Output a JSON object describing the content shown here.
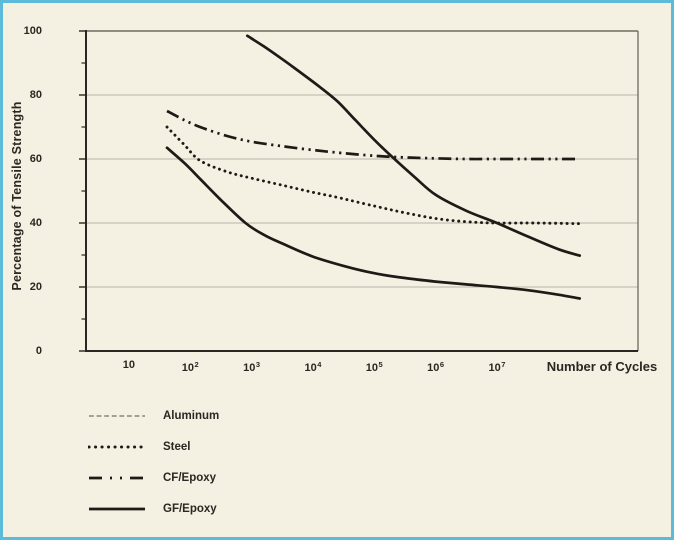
{
  "figure": {
    "background_color": "#f4f0e2",
    "border_color": "#5bbbd9",
    "gridline_color": "#b9b5aa",
    "axis_color": "#2a2620",
    "frame_color": "#6e6a60",
    "text_color": "#2b2722"
  },
  "chart_data": {
    "type": "line",
    "title": "",
    "xlabel": "Number of Cycles",
    "ylabel": "Percentage of Tensile Strength",
    "x_scale": "log10",
    "xlim_log10": [
      0.3,
      9.3
    ],
    "ylim": [
      0,
      100
    ],
    "grid": "horizontal-only",
    "legend_position": "below-left",
    "x_ticks": [
      {
        "log10": 1,
        "base": "10",
        "exp": ""
      },
      {
        "log10": 2,
        "base": "10",
        "exp": "2"
      },
      {
        "log10": 3,
        "base": "10",
        "exp": "3"
      },
      {
        "log10": 4,
        "base": "10",
        "exp": "4"
      },
      {
        "log10": 5,
        "base": "10",
        "exp": "5"
      },
      {
        "log10": 6,
        "base": "10",
        "exp": "6"
      },
      {
        "log10": 7,
        "base": "10",
        "exp": "7"
      }
    ],
    "y_ticks": [
      0,
      20,
      40,
      60,
      80,
      100
    ],
    "y_minor_ticks": [
      10,
      30,
      50,
      70,
      90
    ],
    "gridline_values": [
      20,
      40,
      60,
      80
    ],
    "series": [
      {
        "name": "Aluminum",
        "legend_line": {
          "color": "#8a857a",
          "width": 1.6,
          "dash": "4.8 2.8",
          "cap": "butt"
        },
        "curve_line": {
          "color": "#1e1b16",
          "width": 2.7,
          "dash": "",
          "cap": "round"
        },
        "points_log10_pct": [
          [
            2.93,
            98.5
          ],
          [
            3.2,
            95.2
          ],
          [
            3.5,
            91.2
          ],
          [
            3.8,
            87.0
          ],
          [
            4.1,
            82.7
          ],
          [
            4.4,
            78.0
          ],
          [
            4.7,
            72.0
          ],
          [
            5.0,
            66.0
          ],
          [
            5.3,
            60.5
          ],
          [
            5.65,
            54.5
          ],
          [
            6.0,
            48.8
          ],
          [
            6.5,
            43.8
          ],
          [
            7.0,
            40.0
          ],
          [
            7.5,
            35.8
          ],
          [
            8.0,
            31.8
          ],
          [
            8.35,
            29.8
          ]
        ]
      },
      {
        "name": "Steel",
        "legend_line": {
          "color": "#1e1b16",
          "width": 3,
          "dash": "0.1 6.4",
          "cap": "round"
        },
        "curve_line": {
          "color": "#1e1b16",
          "width": 2.9,
          "dash": "0.1 5.6",
          "cap": "round"
        },
        "points_log10_pct": [
          [
            1.62,
            70.0
          ],
          [
            1.9,
            64.5
          ],
          [
            2.16,
            59.5
          ],
          [
            2.6,
            56.0
          ],
          [
            3.0,
            54.0
          ],
          [
            3.5,
            51.8
          ],
          [
            4.0,
            49.6
          ],
          [
            4.4,
            48.0
          ],
          [
            5.0,
            45.3
          ],
          [
            5.5,
            43.2
          ],
          [
            6.0,
            41.4
          ],
          [
            6.5,
            40.4
          ],
          [
            7.0,
            40.0
          ],
          [
            7.6,
            40.0
          ],
          [
            8.33,
            39.8
          ]
        ]
      },
      {
        "name": "CF/Epoxy",
        "legend_line": {
          "color": "#1e1b16",
          "width": 2.8,
          "dash": "13 8 2 8 2 8",
          "cap": "butt"
        },
        "curve_line": {
          "color": "#1e1b16",
          "width": 2.7,
          "dash": "13 4.5 2.2 4.5 2.2 4.5",
          "cap": "butt"
        },
        "points_log10_pct": [
          [
            1.62,
            75.0
          ],
          [
            1.9,
            72.2
          ],
          [
            2.16,
            70.0
          ],
          [
            2.6,
            67.2
          ],
          [
            3.0,
            65.4
          ],
          [
            3.5,
            64.0
          ],
          [
            4.0,
            62.8
          ],
          [
            4.4,
            62.0
          ],
          [
            5.0,
            61.0
          ],
          [
            5.5,
            60.5
          ],
          [
            6.0,
            60.2
          ],
          [
            6.5,
            60.0
          ],
          [
            7.0,
            60.0
          ],
          [
            7.6,
            60.0
          ],
          [
            8.34,
            60.0
          ]
        ]
      },
      {
        "name": "GF/Epoxy",
        "legend_line": {
          "color": "#1e1b16",
          "width": 2.8,
          "dash": "",
          "cap": "butt"
        },
        "curve_line": {
          "color": "#1e1b16",
          "width": 2.7,
          "dash": "",
          "cap": "round"
        },
        "points_log10_pct": [
          [
            1.62,
            63.5
          ],
          [
            1.9,
            58.8
          ],
          [
            2.17,
            53.6
          ],
          [
            2.5,
            47.2
          ],
          [
            2.9,
            40.0
          ],
          [
            3.2,
            36.3
          ],
          [
            3.5,
            33.6
          ],
          [
            4.0,
            29.5
          ],
          [
            4.5,
            26.6
          ],
          [
            5.0,
            24.3
          ],
          [
            5.5,
            22.8
          ],
          [
            6.0,
            21.7
          ],
          [
            6.5,
            20.8
          ],
          [
            7.0,
            20.0
          ],
          [
            7.5,
            19.0
          ],
          [
            8.0,
            17.6
          ],
          [
            8.35,
            16.4
          ]
        ]
      }
    ]
  }
}
